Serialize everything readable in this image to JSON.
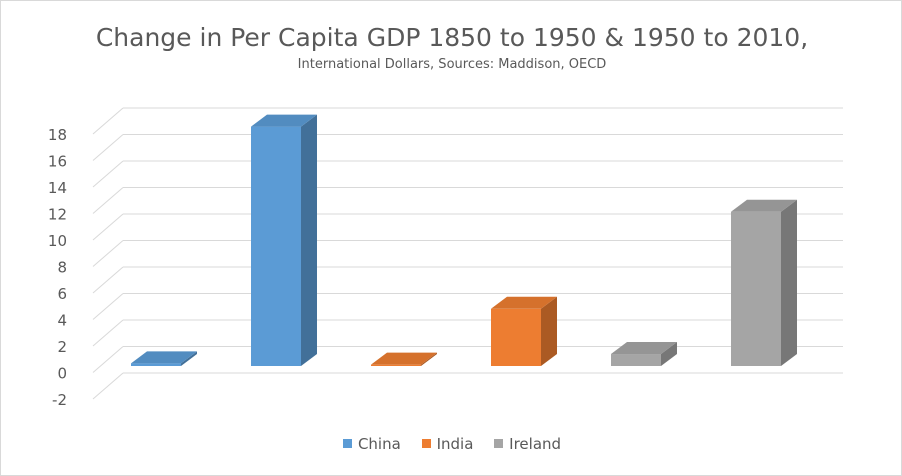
{
  "chart_data": {
    "type": "bar",
    "title": "Change in Per Capita GDP 1850 to 1950 & 1950 to 2010,",
    "subtitle": "International Dollars, Sources: Maddison, OECD",
    "ylim": [
      -2,
      18
    ],
    "yticks": [
      "18",
      "16",
      "14",
      "12",
      "10",
      "8",
      "6",
      "4",
      "2",
      "0",
      "-2"
    ],
    "bars": [
      {
        "series": "China",
        "value": 0.2
      },
      {
        "series": "China",
        "value": 18.0
      },
      {
        "series": "India",
        "value": 0.1
      },
      {
        "series": "India",
        "value": 4.3
      },
      {
        "series": "Ireland",
        "value": 0.9
      },
      {
        "series": "Ireland",
        "value": 11.6
      }
    ],
    "series": [
      {
        "name": "China",
        "color": "#5b9bd5"
      },
      {
        "name": "India",
        "color": "#ed7d31"
      },
      {
        "name": "Ireland",
        "color": "#a5a5a5"
      }
    ],
    "legend_position": "bottom",
    "grid": true
  }
}
